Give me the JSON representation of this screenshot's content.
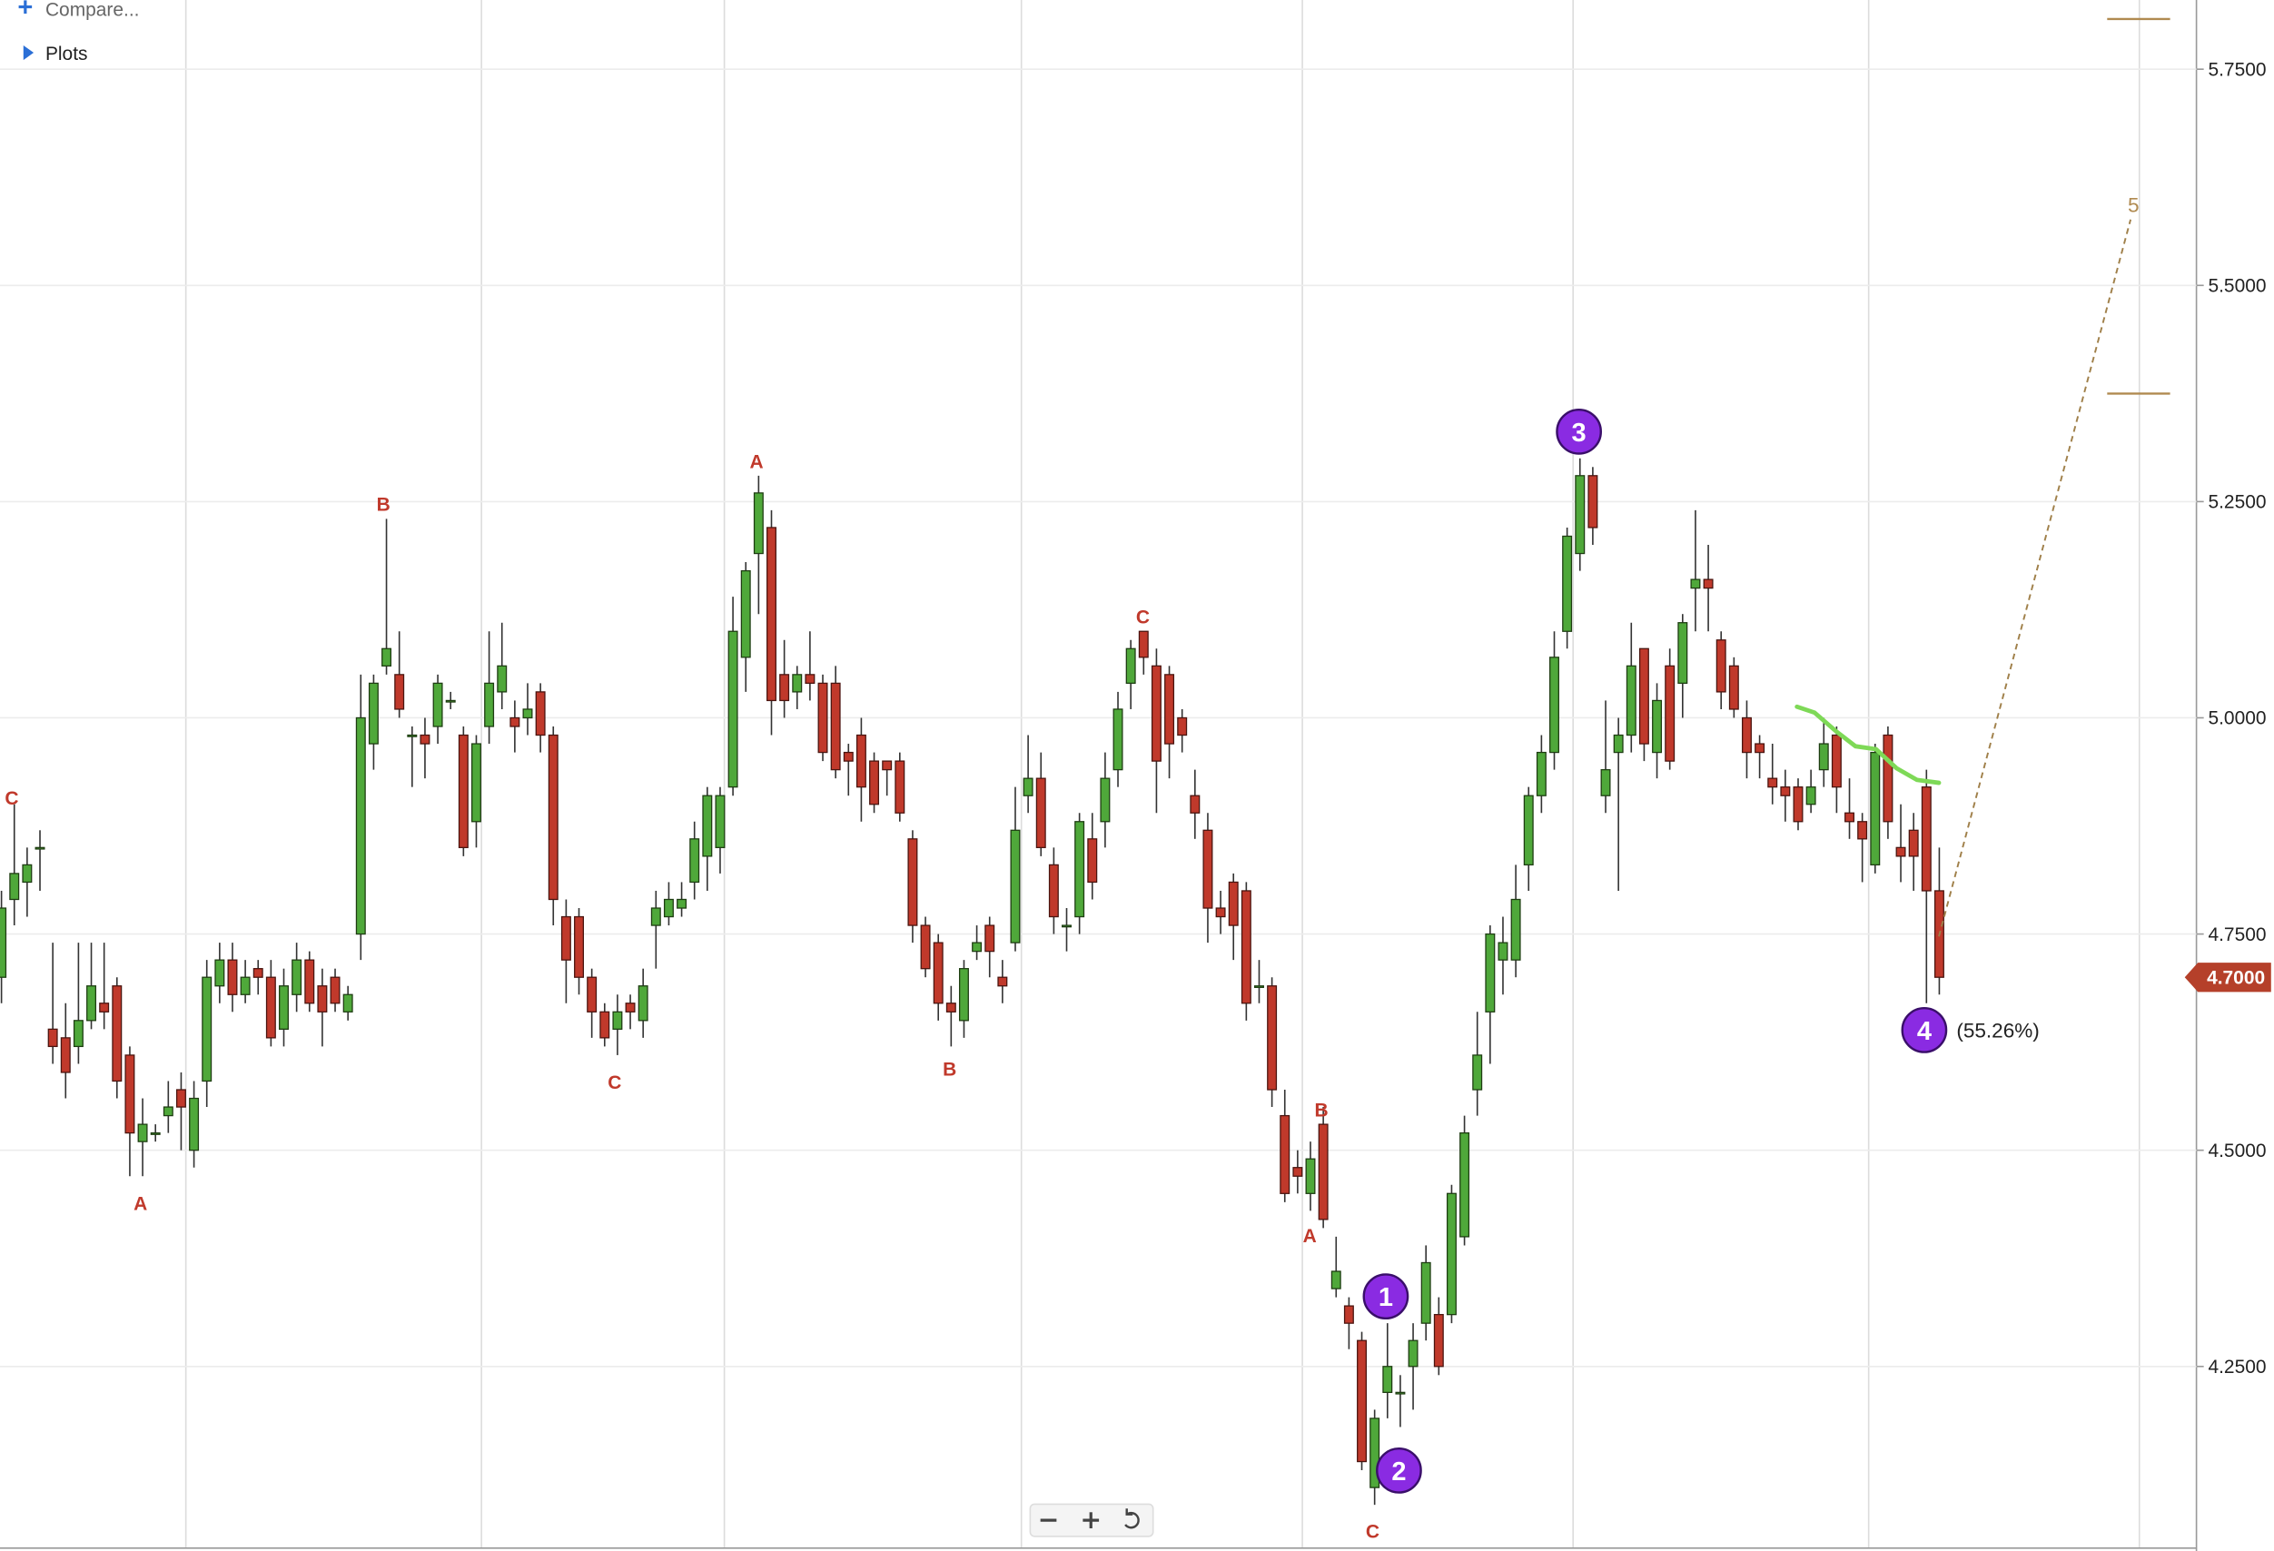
{
  "toolbar": {
    "compare": "Compare...",
    "plots": "Plots"
  },
  "chart_data": {
    "type": "candlestick",
    "open": [
      4.7,
      4.79,
      4.81,
      4.85,
      4.64,
      4.63,
      4.62,
      4.65,
      4.67,
      4.69,
      4.61,
      4.51,
      4.52,
      4.54,
      4.57,
      4.5,
      4.58,
      4.69,
      4.72,
      4.68,
      4.71,
      4.7,
      4.64,
      4.68,
      4.72,
      4.69,
      4.7,
      4.66,
      4.75,
      4.97,
      5.06,
      5.05,
      4.98,
      4.98,
      4.99,
      5.02,
      4.98,
      4.88,
      4.99,
      5.03,
      5.0,
      5.0,
      5.03,
      4.98,
      4.77,
      4.77,
      4.7,
      4.66,
      4.64,
      4.67,
      4.65,
      4.76,
      4.77,
      4.78,
      4.81,
      4.84,
      4.85,
      4.92,
      5.07,
      5.19,
      5.22,
      5.05,
      5.03,
      5.05,
      5.04,
      5.04,
      4.96,
      4.98,
      4.95,
      4.95,
      4.95,
      4.86,
      4.76,
      4.74,
      4.67,
      4.65,
      4.73,
      4.76,
      4.7,
      4.74,
      4.91,
      4.93,
      4.83,
      4.76,
      4.77,
      4.86,
      4.88,
      4.94,
      5.04,
      5.1,
      5.06,
      5.05,
      5.0,
      4.91,
      4.87,
      4.78,
      4.81,
      4.8,
      4.69,
      4.69,
      4.54,
      4.48,
      4.45,
      4.53,
      4.34,
      4.32,
      4.28,
      4.11,
      4.22,
      4.22,
      4.25,
      4.3,
      4.31,
      4.31,
      4.4,
      4.57,
      4.66,
      4.72,
      4.72,
      4.83,
      4.91,
      4.96,
      5.1,
      5.19,
      5.28,
      4.91,
      4.96,
      4.98,
      5.08,
      4.96,
      5.06,
      5.04,
      5.15,
      5.16,
      5.09,
      5.06,
      5.0,
      4.97,
      4.93,
      4.92,
      4.92,
      4.9,
      4.94,
      4.98,
      4.89,
      4.88,
      4.83,
      4.98,
      4.85,
      4.87,
      4.92,
      4.8
    ],
    "high": [
      4.8,
      4.9,
      4.85,
      4.87,
      4.74,
      4.67,
      4.74,
      4.74,
      4.74,
      4.7,
      4.62,
      4.56,
      4.53,
      4.58,
      4.59,
      4.58,
      4.72,
      4.74,
      4.74,
      4.72,
      4.72,
      4.72,
      4.71,
      4.74,
      4.73,
      4.71,
      4.71,
      4.69,
      5.05,
      5.05,
      5.23,
      5.1,
      4.99,
      5.0,
      5.05,
      5.03,
      4.99,
      4.98,
      5.1,
      5.11,
      5.02,
      5.04,
      5.04,
      4.99,
      4.79,
      4.78,
      4.71,
      4.67,
      4.68,
      4.68,
      4.71,
      4.8,
      4.81,
      4.81,
      4.88,
      4.92,
      4.92,
      5.14,
      5.18,
      5.28,
      5.24,
      5.09,
      5.06,
      5.1,
      5.05,
      5.06,
      4.97,
      5.0,
      4.96,
      4.95,
      4.96,
      4.87,
      4.77,
      4.75,
      4.69,
      4.72,
      4.76,
      4.77,
      4.72,
      4.92,
      4.98,
      4.96,
      4.85,
      4.78,
      4.89,
      4.89,
      4.96,
      5.03,
      5.09,
      5.1,
      5.08,
      5.06,
      5.01,
      4.94,
      4.89,
      4.8,
      4.82,
      4.81,
      4.72,
      4.7,
      4.57,
      4.5,
      4.51,
      4.55,
      4.4,
      4.33,
      4.29,
      4.2,
      4.3,
      4.24,
      4.3,
      4.39,
      4.33,
      4.46,
      4.54,
      4.66,
      4.76,
      4.77,
      4.83,
      4.92,
      4.98,
      5.1,
      5.22,
      5.3,
      5.29,
      5.02,
      5.0,
      5.11,
      5.08,
      5.04,
      5.08,
      5.12,
      5.24,
      5.2,
      5.1,
      5.07,
      5.02,
      4.98,
      4.97,
      4.94,
      4.93,
      4.94,
      5.0,
      4.99,
      4.93,
      4.89,
      4.97,
      4.99,
      4.9,
      4.89,
      4.94,
      4.85
    ],
    "low": [
      4.67,
      4.76,
      4.77,
      4.8,
      4.6,
      4.56,
      4.6,
      4.64,
      4.64,
      4.56,
      4.47,
      4.47,
      4.51,
      4.52,
      4.5,
      4.48,
      4.55,
      4.67,
      4.66,
      4.67,
      4.68,
      4.62,
      4.62,
      4.66,
      4.66,
      4.62,
      4.66,
      4.65,
      4.72,
      4.94,
      5.05,
      5.0,
      4.92,
      4.93,
      4.97,
      5.01,
      4.84,
      4.85,
      4.97,
      5.01,
      4.96,
      4.98,
      4.96,
      4.76,
      4.67,
      4.68,
      4.63,
      4.62,
      4.61,
      4.64,
      4.63,
      4.71,
      4.76,
      4.77,
      4.79,
      4.8,
      4.82,
      4.91,
      5.03,
      5.12,
      4.98,
      5.0,
      5.01,
      5.02,
      4.95,
      4.93,
      4.91,
      4.88,
      4.89,
      4.91,
      4.88,
      4.74,
      4.7,
      4.65,
      4.62,
      4.63,
      4.72,
      4.7,
      4.67,
      4.73,
      4.89,
      4.84,
      4.75,
      4.73,
      4.75,
      4.79,
      4.85,
      4.92,
      5.01,
      5.05,
      4.89,
      4.93,
      4.96,
      4.86,
      4.74,
      4.75,
      4.72,
      4.65,
      4.67,
      4.55,
      4.44,
      4.45,
      4.43,
      4.41,
      4.33,
      4.27,
      4.13,
      4.09,
      4.19,
      4.18,
      4.2,
      4.28,
      4.24,
      4.3,
      4.39,
      4.54,
      4.6,
      4.68,
      4.7,
      4.8,
      4.89,
      4.94,
      5.08,
      5.17,
      5.2,
      4.89,
      4.8,
      4.96,
      4.95,
      4.93,
      4.94,
      5.0,
      5.1,
      5.1,
      5.01,
      5.0,
      4.93,
      4.93,
      4.9,
      4.88,
      4.87,
      4.89,
      4.92,
      4.89,
      4.86,
      4.81,
      4.82,
      4.86,
      4.81,
      4.8,
      4.67,
      4.68
    ],
    "close": [
      4.78,
      4.82,
      4.83,
      4.85,
      4.62,
      4.59,
      4.65,
      4.69,
      4.66,
      4.58,
      4.52,
      4.53,
      4.52,
      4.55,
      4.55,
      4.56,
      4.7,
      4.72,
      4.68,
      4.7,
      4.7,
      4.63,
      4.69,
      4.72,
      4.67,
      4.66,
      4.67,
      4.68,
      5.0,
      5.04,
      5.08,
      5.01,
      4.98,
      4.97,
      5.04,
      5.02,
      4.85,
      4.97,
      5.04,
      5.06,
      4.99,
      5.01,
      4.98,
      4.79,
      4.72,
      4.7,
      4.66,
      4.63,
      4.66,
      4.66,
      4.69,
      4.78,
      4.79,
      4.79,
      4.86,
      4.91,
      4.91,
      5.1,
      5.17,
      5.26,
      5.02,
      5.02,
      5.05,
      5.04,
      4.96,
      4.94,
      4.95,
      4.92,
      4.9,
      4.94,
      4.89,
      4.76,
      4.71,
      4.67,
      4.66,
      4.71,
      4.74,
      4.73,
      4.69,
      4.87,
      4.93,
      4.85,
      4.77,
      4.76,
      4.88,
      4.81,
      4.93,
      5.01,
      5.08,
      5.07,
      4.95,
      4.97,
      4.98,
      4.89,
      4.78,
      4.77,
      4.76,
      4.67,
      4.69,
      4.57,
      4.45,
      4.47,
      4.49,
      4.42,
      4.36,
      4.3,
      4.14,
      4.19,
      4.25,
      4.22,
      4.28,
      4.37,
      4.25,
      4.45,
      4.52,
      4.61,
      4.75,
      4.74,
      4.79,
      4.91,
      4.96,
      5.07,
      5.21,
      5.28,
      5.22,
      4.94,
      4.98,
      5.06,
      4.97,
      5.02,
      4.95,
      5.11,
      5.16,
      5.15,
      5.03,
      5.01,
      4.96,
      4.96,
      4.92,
      4.91,
      4.88,
      4.92,
      4.97,
      4.92,
      4.88,
      4.86,
      4.96,
      4.88,
      4.84,
      4.84,
      4.8,
      4.7
    ],
    "up_color": "#4fa83a",
    "down_color": "#c0392b",
    "ylim": [
      4.04,
      5.83
    ],
    "yticks": [
      {
        "value": 4.25,
        "label": "4.2500"
      },
      {
        "value": 4.5,
        "label": "4.5000"
      },
      {
        "value": 4.75,
        "label": "4.7500"
      },
      {
        "value": 5.0,
        "label": "5.0000"
      },
      {
        "value": 5.25,
        "label": "5.2500"
      },
      {
        "value": 5.5,
        "label": "5.5000"
      },
      {
        "value": 5.75,
        "label": "5.7500"
      }
    ],
    "grid": true,
    "last_price": 4.7,
    "last_price_label": "4.7000",
    "wave_labels": [
      "C",
      "A",
      "B",
      "C",
      "A",
      "B",
      "C",
      "A",
      "B",
      "C"
    ],
    "wave_counts": [
      "1",
      "2",
      "3",
      "4"
    ],
    "retracement_label": "(55.26%)",
    "projection_label": "5"
  }
}
